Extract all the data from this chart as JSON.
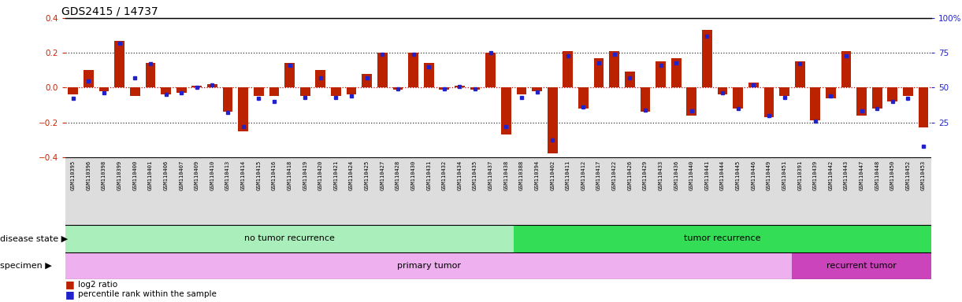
{
  "title": "GDS2415 / 14737",
  "ylim_left": [
    -0.4,
    0.4
  ],
  "ylim_right": [
    0,
    100
  ],
  "yticks_left": [
    -0.4,
    -0.2,
    0.0,
    0.2,
    0.4
  ],
  "yticks_right": [
    25,
    50,
    75,
    100
  ],
  "sample_ids": [
    "GSM110395",
    "GSM110396",
    "GSM110398",
    "GSM110399",
    "GSM110400",
    "GSM110401",
    "GSM110406",
    "GSM110407",
    "GSM110409",
    "GSM110410",
    "GSM110413",
    "GSM110414",
    "GSM110415",
    "GSM110416",
    "GSM110418",
    "GSM110419",
    "GSM110420",
    "GSM110421",
    "GSM110424",
    "GSM110425",
    "GSM110427",
    "GSM110428",
    "GSM110430",
    "GSM110431",
    "GSM110432",
    "GSM110434",
    "GSM110435",
    "GSM110437",
    "GSM110438",
    "GSM110388",
    "GSM110394",
    "GSM110402",
    "GSM110411",
    "GSM110412",
    "GSM110417",
    "GSM110422",
    "GSM110426",
    "GSM110429",
    "GSM110433",
    "GSM110436",
    "GSM110440",
    "GSM110441",
    "GSM110444",
    "GSM110445",
    "GSM110446",
    "GSM110449",
    "GSM110451",
    "GSM110391",
    "GSM110439",
    "GSM110442",
    "GSM110443",
    "GSM110447",
    "GSM110448",
    "GSM110450",
    "GSM110452",
    "GSM110453"
  ],
  "log2_ratios": [
    -0.04,
    0.1,
    -0.02,
    0.27,
    -0.05,
    0.14,
    -0.04,
    -0.03,
    0.01,
    0.02,
    -0.14,
    -0.25,
    -0.05,
    -0.05,
    0.14,
    -0.05,
    0.1,
    -0.05,
    -0.04,
    0.08,
    0.2,
    -0.01,
    0.2,
    0.14,
    -0.01,
    0.01,
    -0.01,
    0.2,
    -0.27,
    -0.04,
    -0.02,
    -0.38,
    0.21,
    -0.12,
    0.17,
    0.21,
    0.09,
    -0.14,
    0.15,
    0.17,
    -0.16,
    0.33,
    -0.04,
    -0.12,
    0.03,
    -0.17,
    -0.05,
    0.15,
    -0.19,
    -0.06,
    0.21,
    -0.16,
    -0.12,
    -0.08,
    -0.05,
    -0.23
  ],
  "percentile_ranks": [
    42,
    55,
    46,
    82,
    57,
    67,
    45,
    46,
    50,
    52,
    32,
    22,
    42,
    40,
    66,
    43,
    57,
    43,
    44,
    57,
    74,
    49,
    74,
    65,
    49,
    51,
    49,
    75,
    22,
    43,
    47,
    12,
    73,
    36,
    68,
    74,
    57,
    34,
    66,
    68,
    33,
    87,
    46,
    35,
    52,
    30,
    43,
    67,
    26,
    44,
    73,
    33,
    35,
    40,
    42,
    8
  ],
  "disease_state_groups": [
    {
      "label": "no tumor recurrence",
      "start": 0,
      "end": 29,
      "color": "#AAEEBB"
    },
    {
      "label": "tumor recurrence",
      "start": 29,
      "end": 56,
      "color": "#33DD55"
    }
  ],
  "specimen_groups": [
    {
      "label": "primary tumor",
      "start": 0,
      "end": 47,
      "color": "#EEB0EE"
    },
    {
      "label": "recurrent tumor",
      "start": 47,
      "end": 56,
      "color": "#CC44BB"
    }
  ],
  "bar_color": "#BB2200",
  "dot_color": "#2222CC",
  "zero_line_color": "#CC0000",
  "dotted_line_color": "#333333",
  "left_tick_color": "#CC2200",
  "right_tick_color": "#2222CC"
}
